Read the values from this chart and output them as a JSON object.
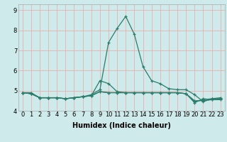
{
  "x": [
    0,
    1,
    2,
    3,
    4,
    5,
    6,
    7,
    8,
    9,
    10,
    11,
    12,
    13,
    14,
    15,
    16,
    17,
    18,
    19,
    20,
    21,
    22,
    23
  ],
  "lines": [
    [
      4.9,
      4.9,
      4.65,
      4.65,
      4.65,
      4.6,
      4.65,
      4.7,
      4.75,
      5.5,
      5.35,
      4.95,
      4.9,
      4.9,
      4.9,
      4.9,
      4.9,
      4.9,
      4.9,
      4.85,
      4.45,
      4.55,
      4.6,
      4.6
    ],
    [
      4.9,
      4.85,
      4.65,
      4.65,
      4.65,
      4.6,
      4.65,
      4.7,
      4.8,
      5.05,
      7.4,
      8.1,
      8.7,
      7.8,
      6.2,
      5.5,
      5.35,
      5.1,
      5.05,
      5.05,
      4.8,
      4.45,
      4.6,
      4.65
    ],
    [
      4.9,
      4.85,
      4.65,
      4.65,
      4.65,
      4.6,
      4.65,
      4.7,
      4.75,
      4.95,
      4.9,
      4.9,
      4.9,
      4.9,
      4.9,
      4.9,
      4.9,
      4.9,
      4.9,
      4.85,
      4.5,
      4.5,
      4.55,
      4.6
    ],
    [
      4.9,
      4.85,
      4.65,
      4.65,
      4.65,
      4.6,
      4.65,
      4.7,
      4.75,
      4.95,
      4.9,
      4.9,
      4.9,
      4.9,
      4.9,
      4.9,
      4.9,
      4.9,
      4.9,
      4.85,
      4.4,
      4.6,
      4.55,
      4.55
    ]
  ],
  "color": "#2a7d6b",
  "bg_color": "#ceeaea",
  "grid_color": "#e8b0b0",
  "xlabel": "Humidex (Indice chaleur)",
  "ylim": [
    4.0,
    9.3
  ],
  "xlim": [
    -0.5,
    23.5
  ],
  "ytick_vals": [
    4,
    5,
    6,
    7,
    8,
    9
  ],
  "xlabel_fontsize": 7,
  "tick_fontsize": 6,
  "linewidth": 0.9,
  "markersize": 3.5
}
